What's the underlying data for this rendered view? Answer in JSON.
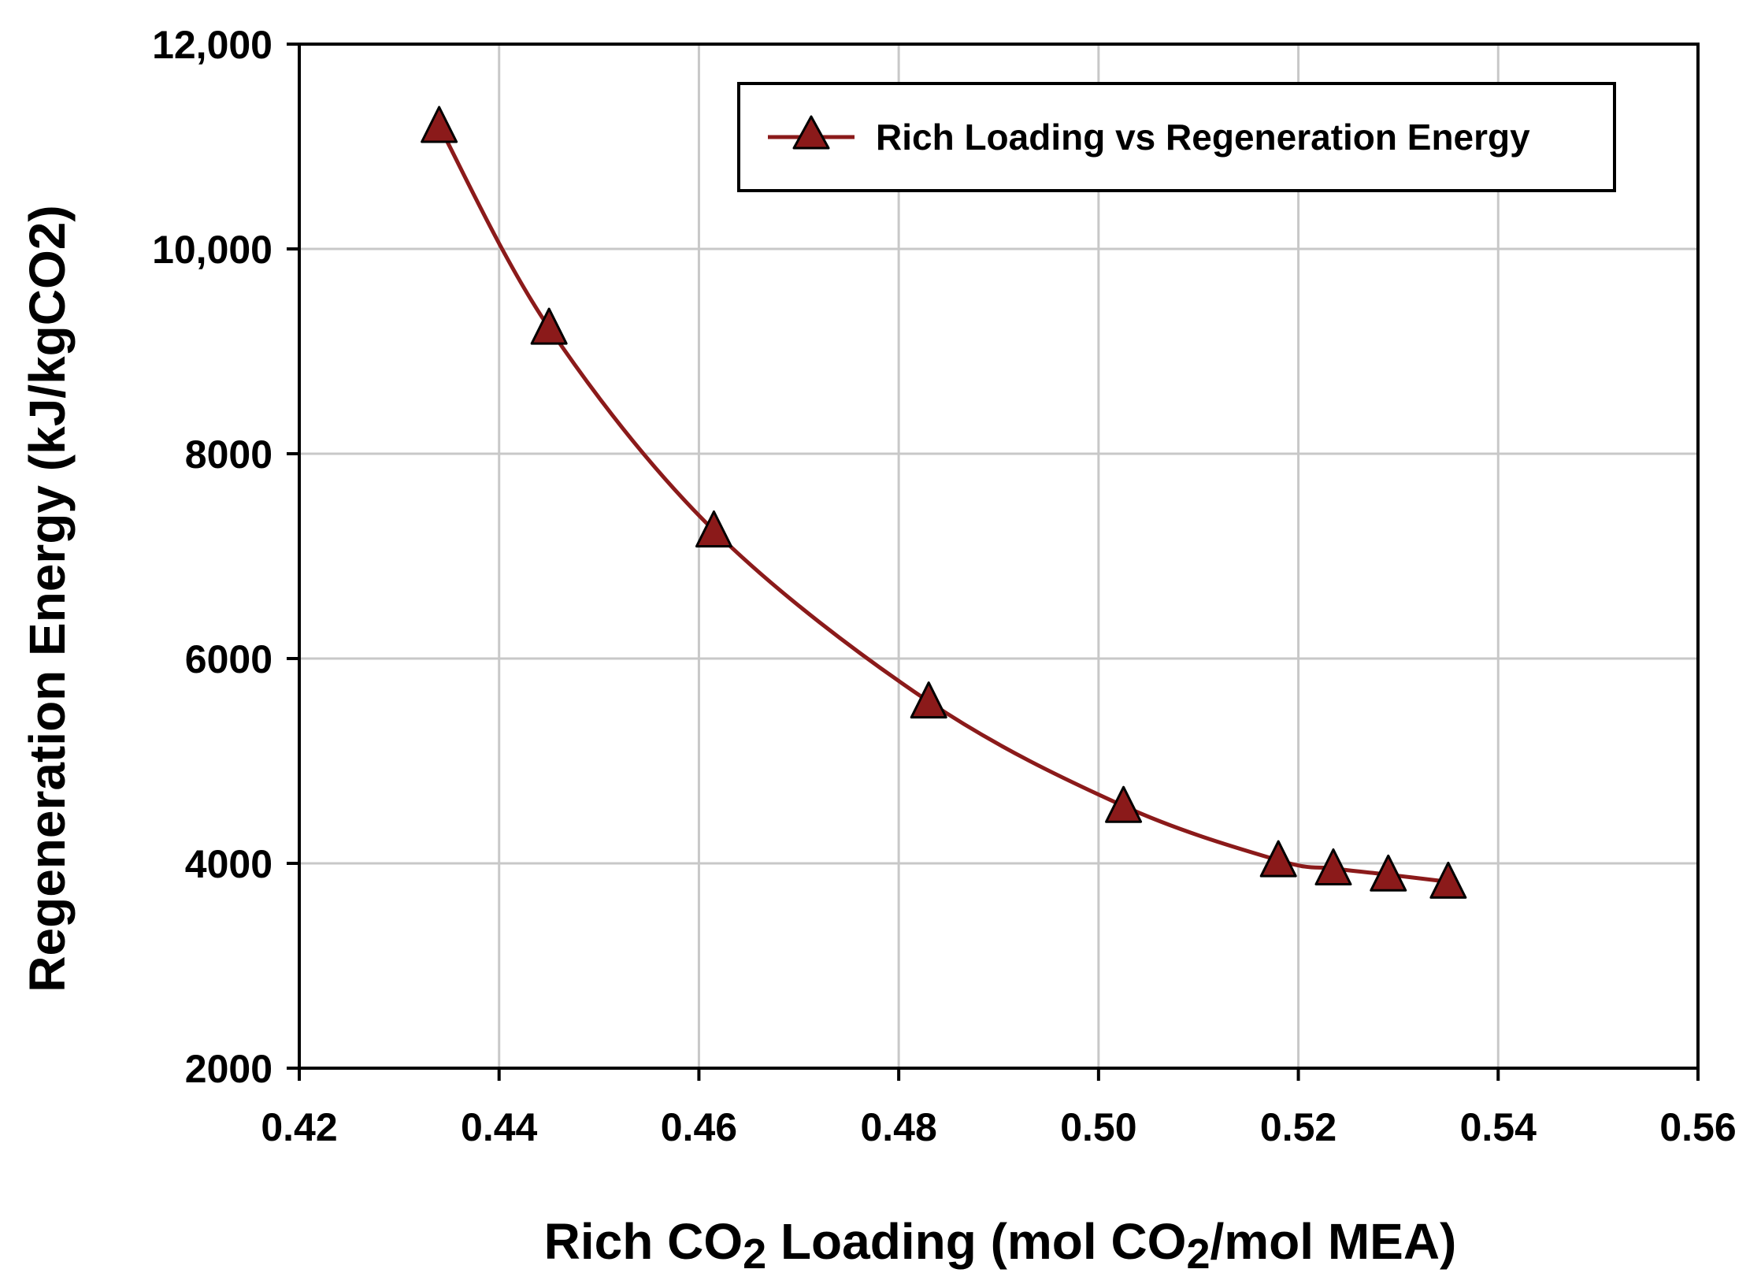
{
  "chart_data": {
    "type": "line",
    "title": "",
    "series": [
      {
        "name": "Rich Loading vs Regeneration Energy",
        "color": "#8b1a1a",
        "marker": "triangle",
        "x": [
          0.434,
          0.445,
          0.4615,
          0.483,
          0.5025,
          0.518,
          0.5235,
          0.529,
          0.535
        ],
        "y": [
          11200,
          9230,
          7250,
          5580,
          4560,
          4030,
          3950,
          3890,
          3820
        ]
      }
    ],
    "xlabel": {
      "prefix": "Rich CO",
      "sub": "2",
      "middle": " Loading (mol CO",
      "sub2": "2",
      "suffix": "/mol MEA)"
    },
    "ylabel": "Regeneration Energy (kJ/kgCO2)",
    "xlim": [
      0.42,
      0.56
    ],
    "ylim": [
      2000,
      12000
    ],
    "xticks": [
      0.42,
      0.44,
      0.46,
      0.48,
      0.5,
      0.52,
      0.54,
      0.56
    ],
    "xtick_labels": [
      "0.42",
      "0.44",
      "0.46",
      "0.48",
      "0.50",
      "0.52",
      "0.54",
      "0.56"
    ],
    "yticks": [
      2000,
      4000,
      6000,
      8000,
      10000,
      12000
    ],
    "ytick_labels": [
      "2000",
      "4000",
      "6000",
      "8000",
      "10,000",
      "12,000"
    ],
    "grid": true,
    "legend_position": "top-right",
    "colors": {
      "line": "#8b1a1a",
      "marker_fill": "#8b1a1a",
      "marker_edge": "#000000",
      "grid": "#c8c8c8",
      "axis": "#000000"
    }
  }
}
